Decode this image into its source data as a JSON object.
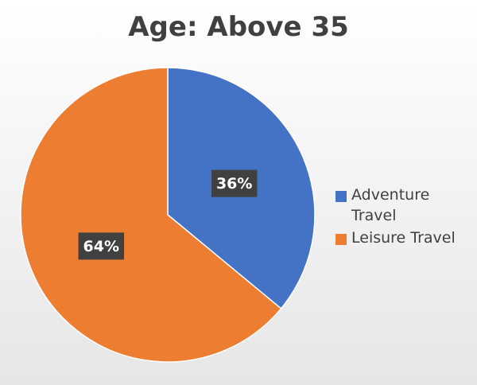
{
  "chart_data": {
    "type": "pie",
    "title": "Age: Above 35",
    "categories": [
      "Adventure Travel",
      "Leisure Travel"
    ],
    "values": [
      36,
      64
    ],
    "value_labels": [
      "36%",
      "64%"
    ],
    "colors": [
      "#4472c4",
      "#ed7d31"
    ],
    "legend": "right"
  }
}
